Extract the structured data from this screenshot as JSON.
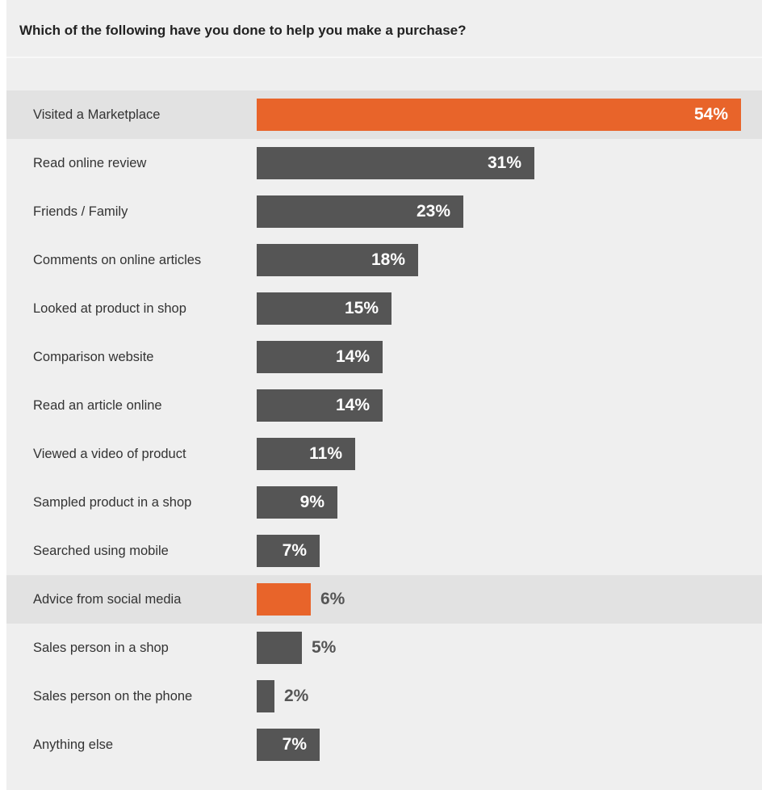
{
  "chart_data": {
    "type": "bar",
    "orientation": "horizontal",
    "title": "Which of the following have you done to help you make a purchase?",
    "categories": [
      "Visited a Marketplace",
      "Read online review",
      "Friends / Family",
      "Comments on online articles",
      "Looked at product in shop",
      "Comparison website",
      "Read an article online",
      "Viewed a video of product",
      "Sampled product in a shop",
      "Searched using mobile",
      "Advice from social media",
      "Sales person in a shop",
      "Sales person on the phone",
      "Anything else"
    ],
    "values": [
      54,
      31,
      23,
      18,
      15,
      14,
      14,
      11,
      9,
      7,
      6,
      5,
      2,
      7
    ],
    "value_labels": [
      "54%",
      "31%",
      "23%",
      "18%",
      "15%",
      "14%",
      "14%",
      "11%",
      "9%",
      "7%",
      "6%",
      "5%",
      "2%",
      "7%"
    ],
    "highlighted": [
      "Visited a Marketplace",
      "Advice from social media"
    ],
    "xlim": [
      0,
      54
    ],
    "grid": false,
    "legend": "none",
    "colors": {
      "bar": "#555555",
      "highlight": "#e8642a",
      "highlight_row": "#e2e2e2",
      "background": "#efefef"
    }
  }
}
